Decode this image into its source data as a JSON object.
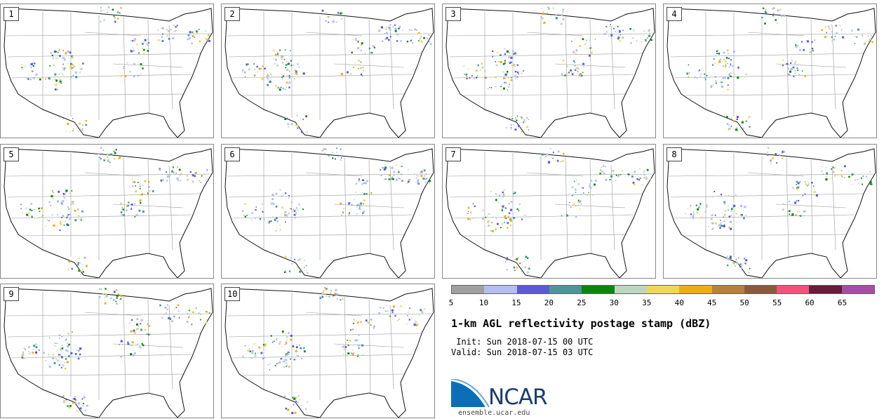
{
  "panels": [
    {
      "label": "1"
    },
    {
      "label": "2"
    },
    {
      "label": "3"
    },
    {
      "label": "4"
    },
    {
      "label": "5"
    },
    {
      "label": "6"
    },
    {
      "label": "7"
    },
    {
      "label": "8"
    },
    {
      "label": "9"
    },
    {
      "label": "10"
    }
  ],
  "colorbar": {
    "colors": [
      "#a0a0a0",
      "#b2bff0",
      "#5a5ad8",
      "#4c9699",
      "#0a870a",
      "#bcd7bd",
      "#f0d75a",
      "#eeac1c",
      "#b5813c",
      "#8b5a3c",
      "#f2517b",
      "#6a1a3a",
      "#a84da7"
    ],
    "ticks": [
      "5",
      "10",
      "15",
      "20",
      "25",
      "30",
      "35",
      "40",
      "45",
      "50",
      "55",
      "60",
      "65"
    ]
  },
  "title": "1-km AGL reflectivity postage stamp (dBZ)",
  "init": " Init: Sun 2018-07-15 00 UTC",
  "valid": "Valid: Sun 2018-07-15 03 UTC",
  "logo": {
    "text": "NCAR",
    "url": "ensemble.ucar.edu",
    "colors": {
      "dark": "#1b3d6e",
      "light": "#6aa7d8",
      "mid": "#2f7bc0"
    }
  }
}
